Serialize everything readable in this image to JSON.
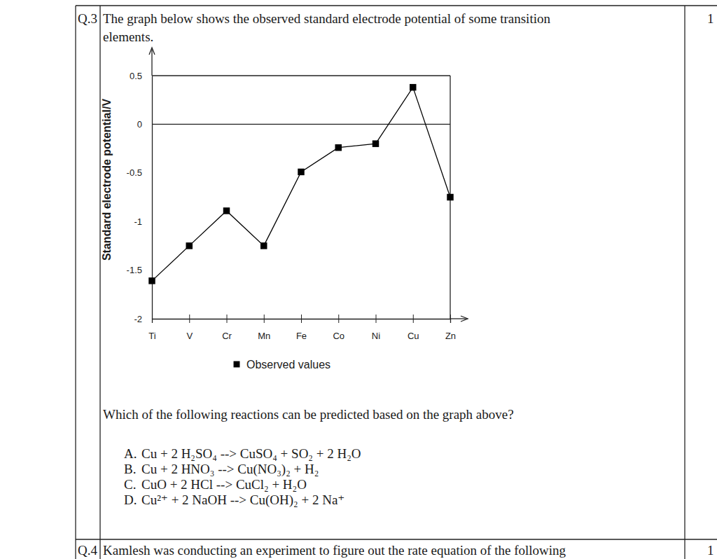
{
  "question": {
    "number": "Q.3",
    "text_lines": [
      "The graph below shows the observed standard electrode potential of some transition",
      "elements."
    ],
    "marks": 1,
    "prompt": "Which of the following reactions can be predicted based on the graph above?",
    "options": [
      {
        "letter": "A.",
        "text": "Cu + 2 H₂SO₄ --> CuSO₄ + SO₂ + 2 H₂O"
      },
      {
        "letter": "B.",
        "text": "Cu + 2 HNO₃ --> Cu(NO₃)₂ + H₂"
      },
      {
        "letter": "C.",
        "text": "CuO + 2 HCl --> CuCl₂ + H₂O"
      },
      {
        "letter": "D.",
        "text": "Cu²⁺ + 2 NaOH --> Cu(OH)₂ + 2 Na⁺"
      }
    ]
  },
  "chart_data": {
    "type": "line",
    "y_label": "Standard electrode potential/V",
    "categories": [
      "Ti",
      "V",
      "Cr",
      "Mn",
      "Fe",
      "Co",
      "Ni",
      "Cu",
      "Zn"
    ],
    "series": [
      {
        "name": "Observed values",
        "color": "#000000",
        "marker": "square",
        "values": [
          -1.61,
          -1.25,
          -0.89,
          -1.25,
          -0.49,
          -0.24,
          -0.2,
          0.38,
          -0.75
        ]
      }
    ],
    "ylim": [
      -2,
      0.5
    ],
    "yticks": [
      -2,
      -1.5,
      -1,
      -0.5,
      0,
      0.5
    ],
    "hlines": [
      0
    ],
    "grid": false,
    "legend": "bottom"
  },
  "next_question": {
    "number": "Q.4",
    "text": "Kamlesh was conducting an experiment to figure out the rate equation of the following",
    "marks": 1
  }
}
